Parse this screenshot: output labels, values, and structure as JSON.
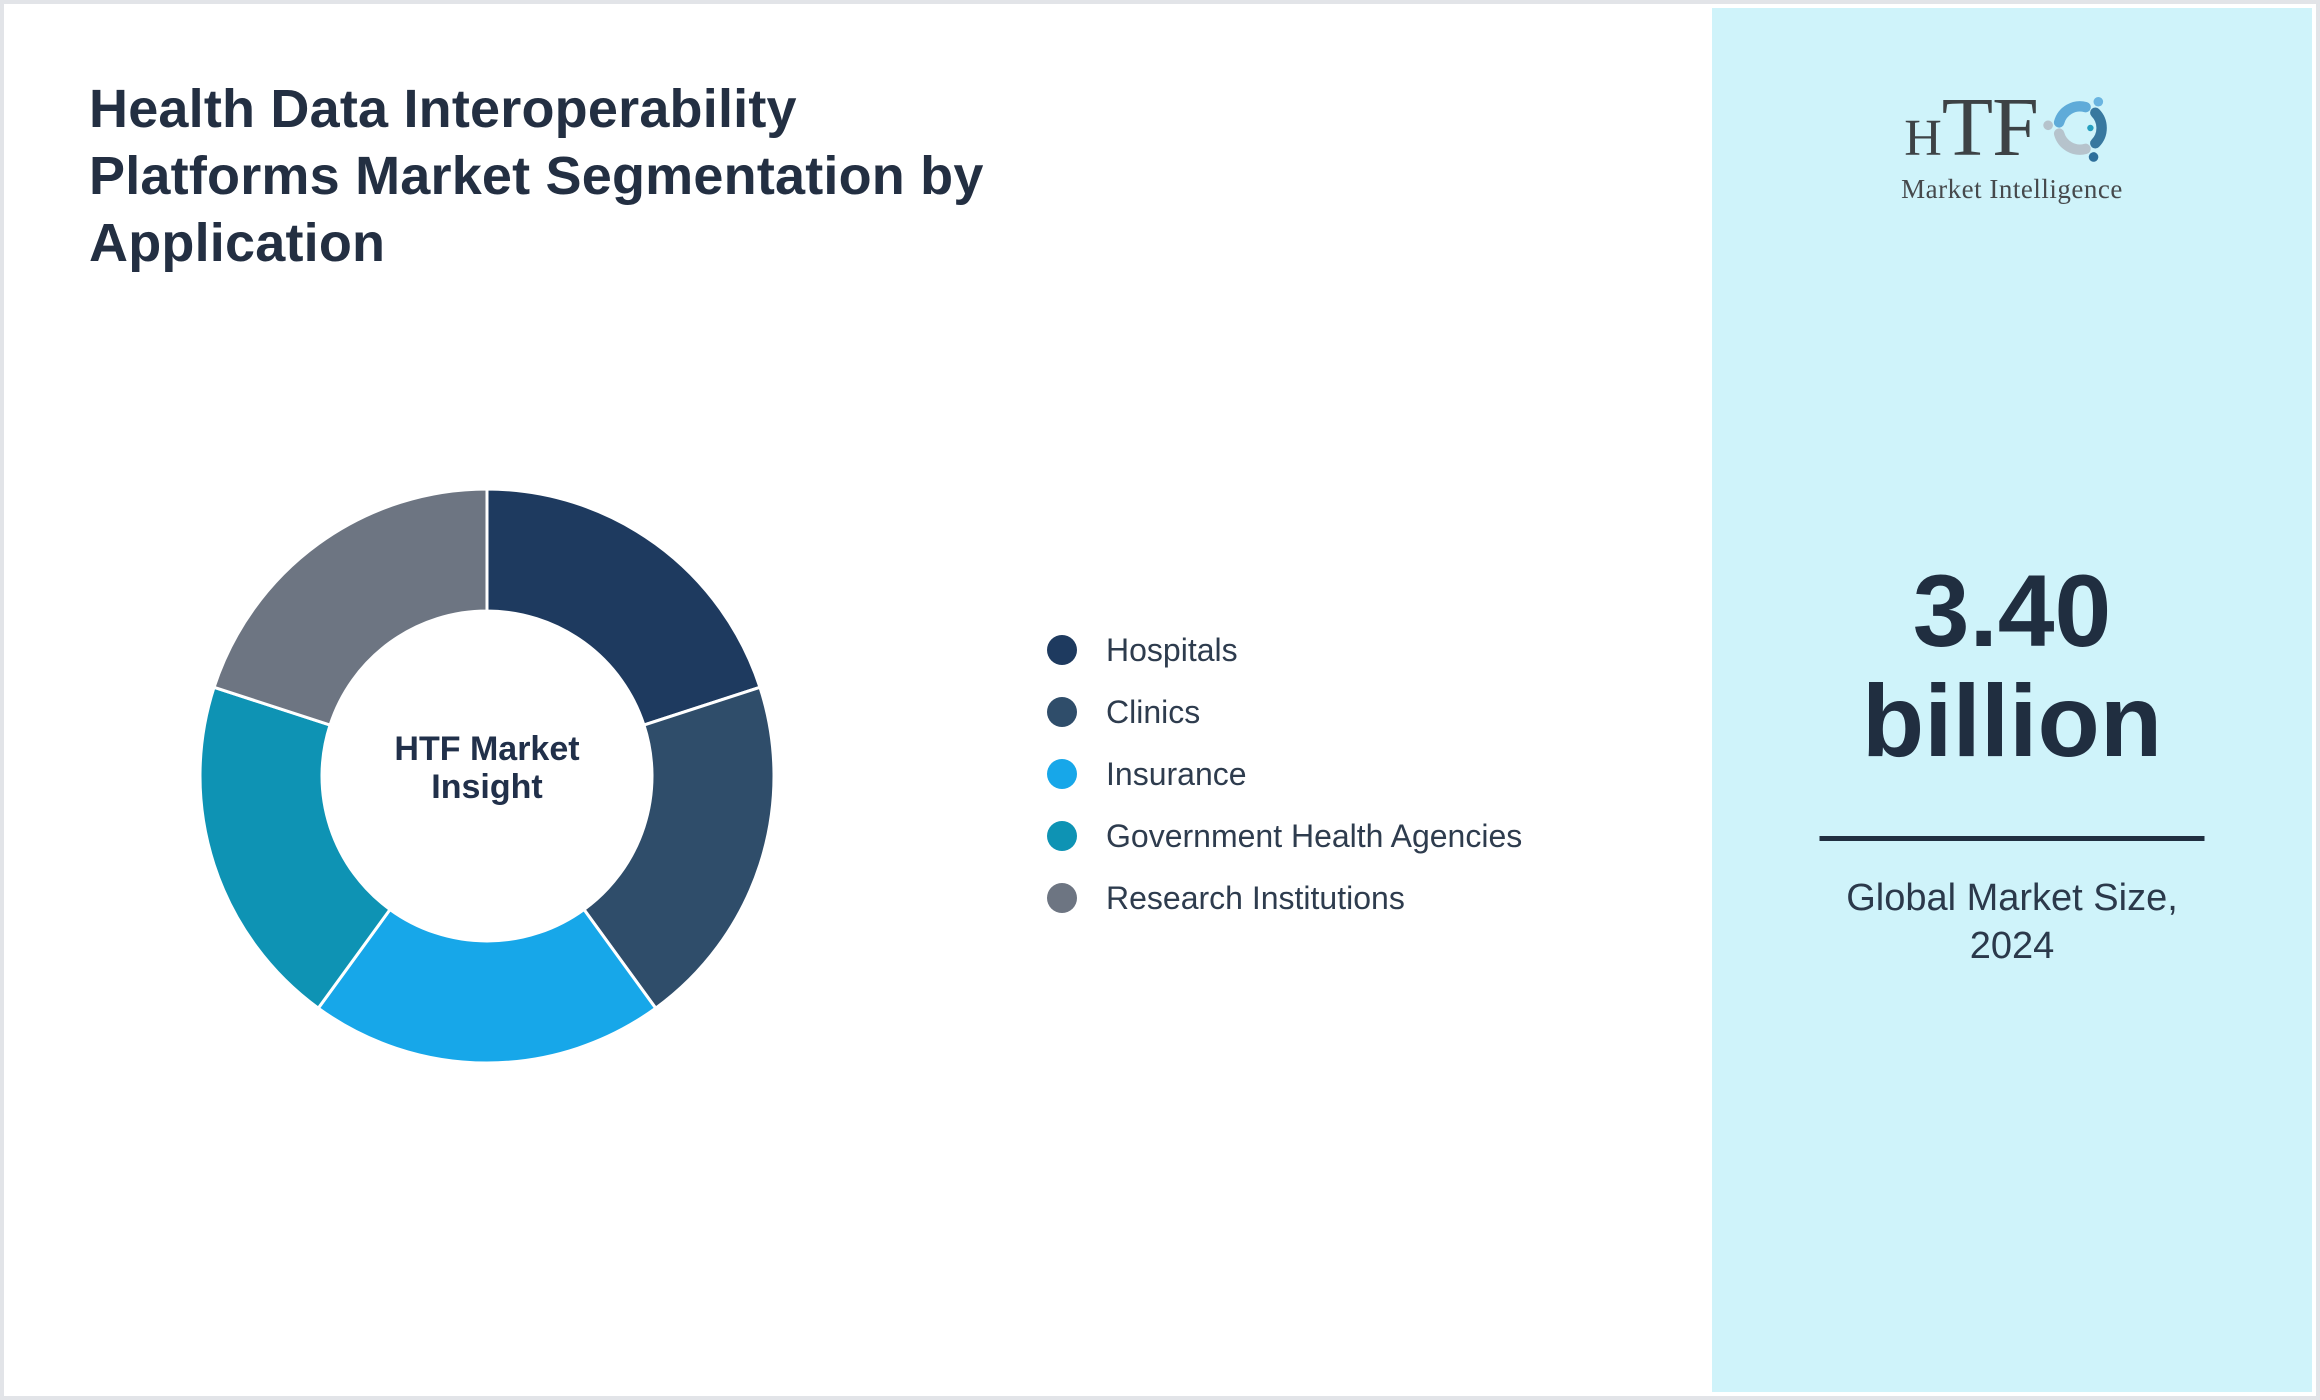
{
  "title": {
    "lines": [
      "Health Data Interoperability",
      "Platforms Market Segmentation by",
      "Application"
    ]
  },
  "logo": {
    "name_parts": [
      "H",
      "TF"
    ],
    "tagline": "Market Intelligence",
    "icon": "htf-swirl-icon",
    "icon_colors": [
      "#5fabd9",
      "#38789f",
      "#b6c3cc"
    ]
  },
  "sidebar": {
    "value_lines": [
      "3.40",
      "billion"
    ],
    "caption_lines": [
      "Global Market Size,",
      "2024"
    ],
    "background": "#cff3fa"
  },
  "chart_data": {
    "type": "pie",
    "subtype": "donut",
    "title": "Health Data Interoperability Platforms Market Segmentation by Application",
    "center_label_lines": [
      "HTF Market",
      "Insight"
    ],
    "categories": [
      "Hospitals",
      "Clinics",
      "Insurance",
      "Government Health Agencies",
      "Research Institutions"
    ],
    "values": [
      20,
      20,
      20,
      20,
      20
    ],
    "values_note": "equal segments, estimated from arc angles (~72° each)",
    "colors": [
      "#1e3a5f",
      "#2f4d6a",
      "#17a7e9",
      "#0e93b4",
      "#6d7582"
    ],
    "legend_position": "right",
    "start_angle_deg": 0,
    "direction": "clockwise",
    "separator_color": "#ffffff"
  }
}
